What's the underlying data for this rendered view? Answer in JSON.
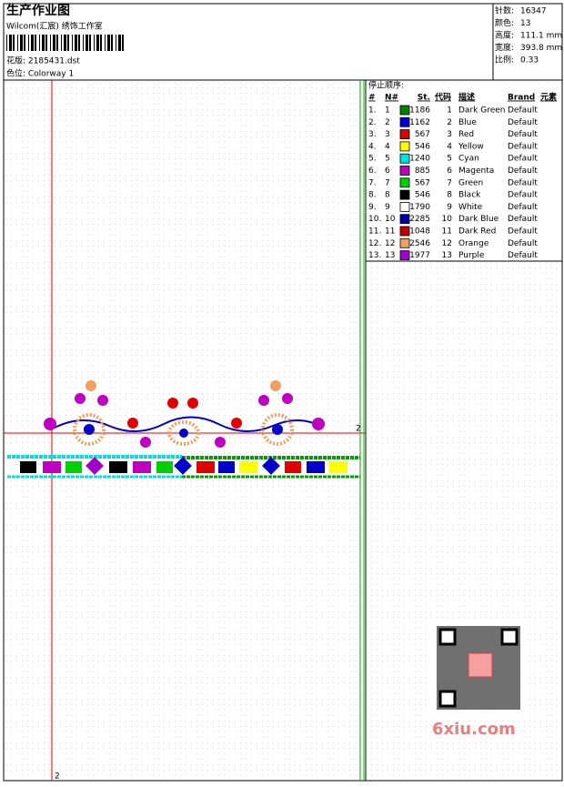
{
  "header": {
    "title": "生产作业图",
    "studio": "Wilcom(汇宸) 绣饰工作室",
    "design": "花版: 2185431.dst",
    "colorway": "色位: Colorway 1"
  },
  "info": [
    {
      "label": "针数:",
      "value": "16347"
    },
    {
      "label": "颜色:",
      "value": "13"
    },
    {
      "label": "高度:",
      "value": "111.1 mm"
    },
    {
      "label": "宽度:",
      "value": "393.8 mm"
    },
    {
      "label": "比例:",
      "value": "0.33"
    }
  ],
  "table": {
    "title": "停止顺序:",
    "columns": [
      "#",
      "N#",
      "St.",
      "代码",
      "描述",
      "Brand",
      "元素"
    ],
    "rows": [
      {
        "no": "1.",
        "n": "1",
        "color": "#008000",
        "st": "1186",
        "code": "1",
        "desc": "Dark Green",
        "brand": "Default"
      },
      {
        "no": "2.",
        "n": "2",
        "color": "#0000c8",
        "st": "1162",
        "code": "2",
        "desc": "Blue",
        "brand": "Default"
      },
      {
        "no": "3.",
        "n": "3",
        "color": "#e00000",
        "st": "567",
        "code": "3",
        "desc": "Red",
        "brand": "Default"
      },
      {
        "no": "4.",
        "n": "4",
        "color": "#ffff00",
        "st": "546",
        "code": "4",
        "desc": "Yellow",
        "brand": "Default"
      },
      {
        "no": "5.",
        "n": "5",
        "color": "#00e0e0",
        "st": "1240",
        "code": "5",
        "desc": "Cyan",
        "brand": "Default"
      },
      {
        "no": "6.",
        "n": "6",
        "color": "#c000c0",
        "st": "885",
        "code": "6",
        "desc": "Magenta",
        "brand": "Default"
      },
      {
        "no": "7.",
        "n": "7",
        "color": "#00d000",
        "st": "567",
        "code": "7",
        "desc": "Green",
        "brand": "Default"
      },
      {
        "no": "8.",
        "n": "8",
        "color": "#000000",
        "st": "546",
        "code": "8",
        "desc": "Black",
        "brand": "Default"
      },
      {
        "no": "9.",
        "n": "9",
        "color": "#ffffff",
        "st": "1790",
        "code": "9",
        "desc": "White",
        "brand": "Default"
      },
      {
        "no": "10.",
        "n": "10",
        "color": "#0000a0",
        "st": "2285",
        "code": "10",
        "desc": "Dark Blue",
        "brand": "Default"
      },
      {
        "no": "11.",
        "n": "11",
        "color": "#c00000",
        "st": "1048",
        "code": "11",
        "desc": "Dark Red",
        "brand": "Default"
      },
      {
        "no": "12.",
        "n": "12",
        "color": "#f0a060",
        "st": "2546",
        "code": "12",
        "desc": "Orange",
        "brand": "Default"
      },
      {
        "no": "13.",
        "n": "13",
        "color": "#a000c8",
        "st": "1977",
        "code": "13",
        "desc": "Purple",
        "brand": "Default"
      }
    ]
  },
  "canvas": {
    "right_marker": "2",
    "bottom_marker": "2"
  },
  "watermark": "6xiu.com"
}
